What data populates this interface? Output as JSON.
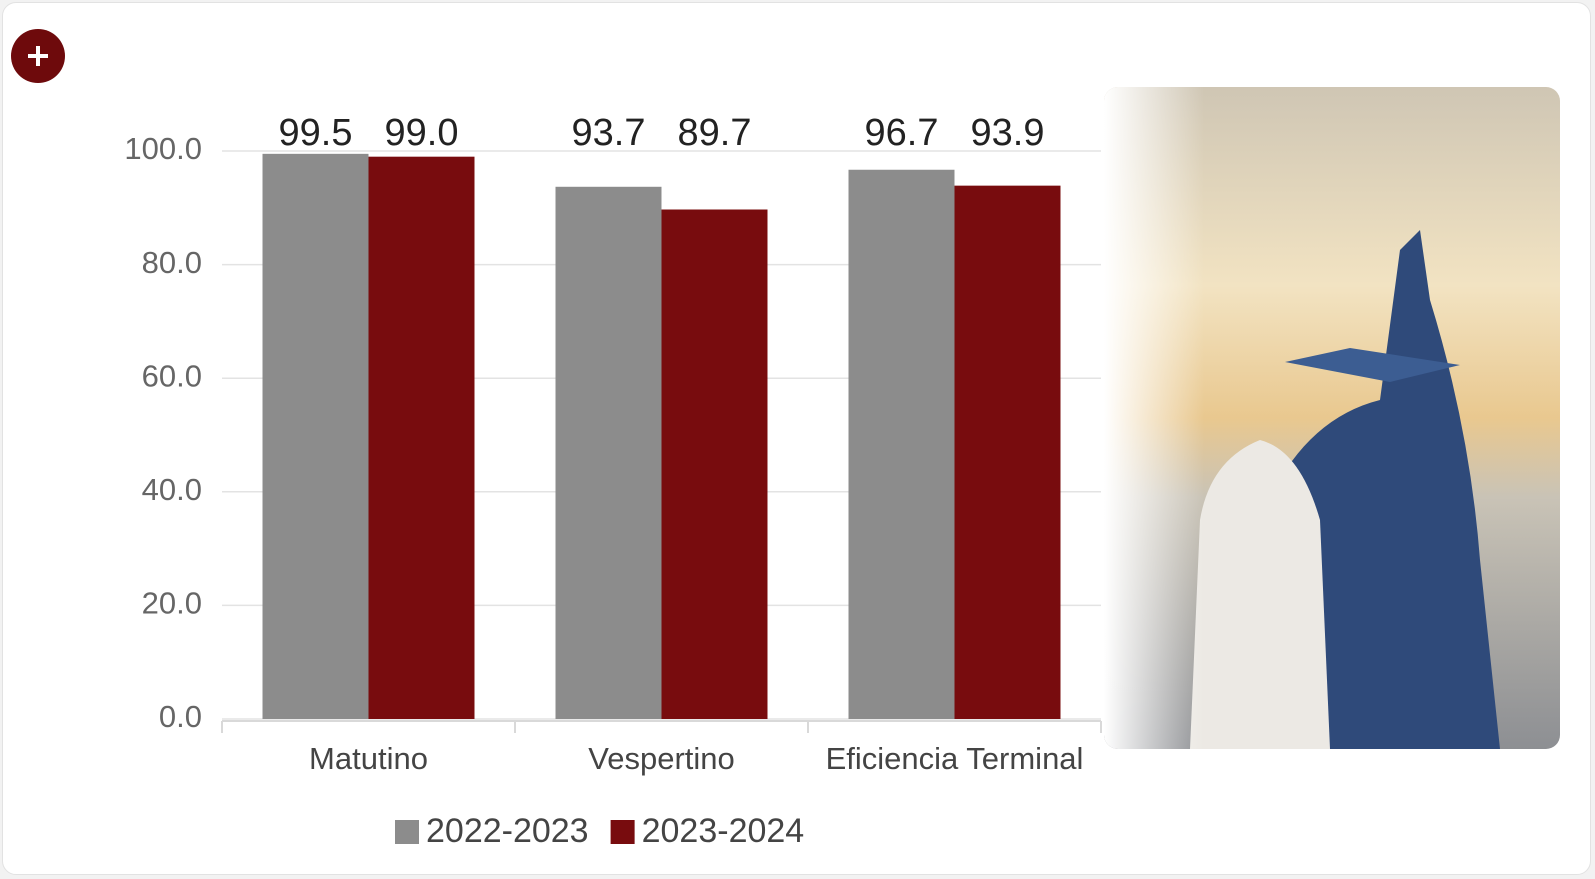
{
  "chart_data": {
    "type": "bar",
    "categories": [
      "Matutino",
      "Vespertino",
      "Eficiencia Terminal"
    ],
    "series": [
      {
        "name": "2022-2023",
        "color": "#8c8c8c",
        "values": [
          99.5,
          93.7,
          96.7
        ],
        "value_labels": [
          "99.5",
          "93.7",
          "96.7"
        ]
      },
      {
        "name": "2023-2024",
        "color": "#780c0e",
        "values": [
          99.0,
          89.7,
          93.9
        ],
        "value_labels": [
          "99.0",
          "89.7",
          "93.9"
        ]
      }
    ],
    "ylim": [
      0,
      100
    ],
    "yticks": [
      {
        "value": 0,
        "label": "0.0"
      },
      {
        "value": 20,
        "label": "20.0"
      },
      {
        "value": 40,
        "label": "40.0"
      },
      {
        "value": 60,
        "label": "60.0"
      },
      {
        "value": 80,
        "label": "80.0"
      },
      {
        "value": 100,
        "label": "100.0"
      }
    ],
    "grid": true,
    "legend": "bottom"
  }
}
